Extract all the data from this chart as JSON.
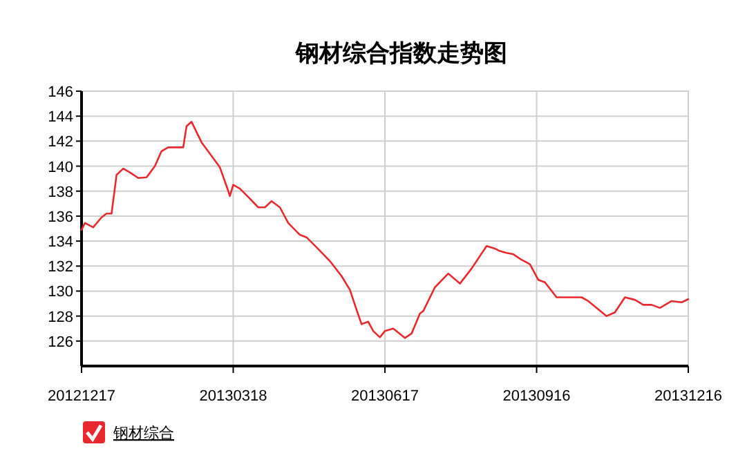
{
  "chart_data": {
    "type": "line",
    "title": "钢材综合指数走势图",
    "x": [
      "2012-12-17",
      "2012-12-19",
      "2012-12-24",
      "2012-12-29",
      "2013-01-01",
      "2013-01-04",
      "2013-01-07",
      "2013-01-11",
      "2013-01-15",
      "2013-01-20",
      "2013-01-25",
      "2013-01-30",
      "2013-02-03",
      "2013-02-07",
      "2013-02-16",
      "2013-02-18",
      "2013-02-21",
      "2013-02-27",
      "2013-03-04",
      "2013-03-10",
      "2013-03-14",
      "2013-03-16",
      "2013-03-18",
      "2013-03-22",
      "2013-03-28",
      "2013-04-02",
      "2013-04-06",
      "2013-04-10",
      "2013-04-15",
      "2013-04-20",
      "2013-04-27",
      "2013-05-01",
      "2013-05-07",
      "2013-05-15",
      "2013-05-22",
      "2013-05-27",
      "2013-05-31",
      "2013-06-03",
      "2013-06-07",
      "2013-06-10",
      "2013-06-14",
      "2013-06-17",
      "2013-06-22",
      "2013-06-29",
      "2013-07-03",
      "2013-07-08",
      "2013-07-10",
      "2013-07-17",
      "2013-07-25",
      "2013-08-01",
      "2013-08-08",
      "2013-08-17",
      "2013-08-22",
      "2013-08-25",
      "2013-08-29",
      "2013-09-02",
      "2013-09-07",
      "2013-09-12",
      "2013-09-17",
      "2013-09-21",
      "2013-09-28",
      "2013-10-13",
      "2013-10-17",
      "2013-10-28",
      "2013-11-02",
      "2013-11-08",
      "2013-11-14",
      "2013-11-19",
      "2013-11-24",
      "2013-11-29",
      "2013-12-06",
      "2013-12-12",
      "2013-12-16"
    ],
    "series": [
      {
        "name": "钢材综合",
        "color": "#e8282d",
        "values": [
          134.9,
          135.45,
          135.1,
          135.9,
          136.2,
          136.2,
          139.3,
          139.8,
          139.5,
          139.05,
          139.1,
          140.0,
          141.2,
          141.5,
          141.5,
          143.2,
          143.55,
          141.9,
          141.0,
          139.9,
          138.4,
          137.6,
          138.5,
          138.2,
          137.4,
          136.7,
          136.7,
          137.2,
          136.7,
          135.45,
          134.5,
          134.3,
          133.5,
          132.4,
          131.2,
          130.1,
          128.5,
          127.35,
          127.55,
          126.8,
          126.3,
          126.8,
          127.0,
          126.25,
          126.6,
          128.2,
          128.4,
          130.3,
          131.4,
          130.6,
          131.8,
          133.6,
          133.4,
          133.2,
          133.05,
          132.95,
          132.5,
          132.15,
          130.9,
          130.7,
          129.5,
          129.5,
          129.2,
          128.0,
          128.3,
          129.5,
          129.3,
          128.9,
          128.9,
          128.65,
          129.2,
          129.1,
          129.35
        ]
      }
    ],
    "xlim": [
      "2012-12-17",
      "2013-12-16"
    ],
    "xticks": [
      {
        "value": "2012-12-17",
        "label": "20121217"
      },
      {
        "value": "2013-03-18",
        "label": "20130318"
      },
      {
        "value": "2013-06-17",
        "label": "20130617"
      },
      {
        "value": "2013-09-16",
        "label": "20130916"
      },
      {
        "value": "2013-12-16",
        "label": "20131216"
      }
    ],
    "ylim": [
      124,
      146
    ],
    "yticks": [
      126,
      128,
      130,
      132,
      134,
      136,
      138,
      140,
      142,
      144,
      146
    ],
    "grid": true,
    "legend": "bottom left",
    "marker": "none",
    "line_style": "solid"
  }
}
